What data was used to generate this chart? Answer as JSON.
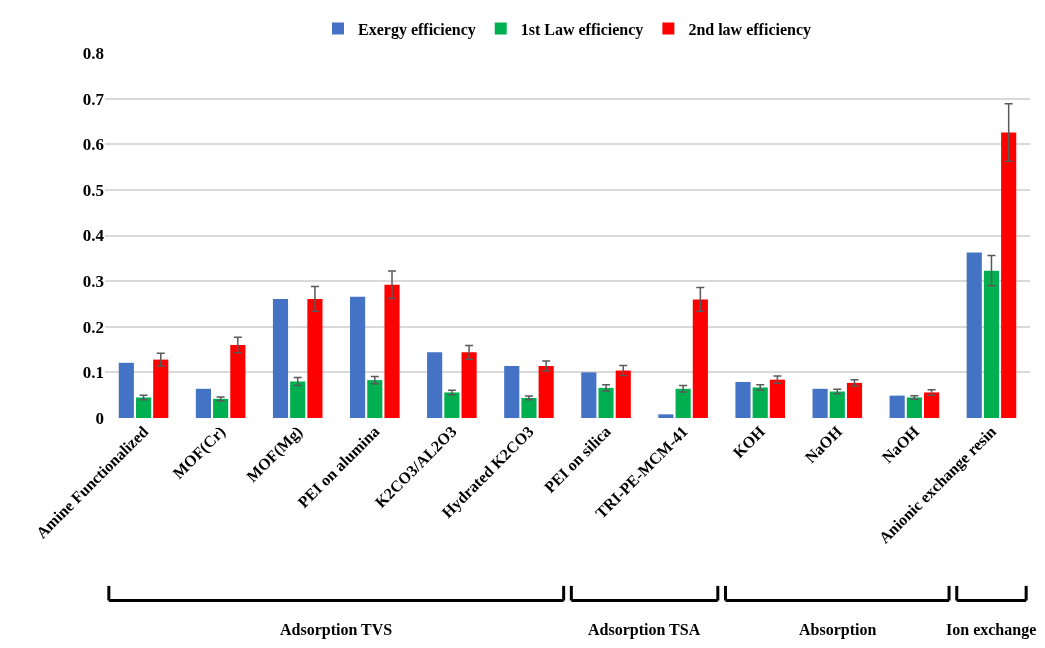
{
  "chart_data": {
    "type": "bar",
    "categories": [
      "Amine Functionalized",
      "MOF(Cr)",
      "MOF(Mg)",
      "PEI on alumina",
      "K2CO3/AL2O3",
      "Hydrated K2CO3",
      "PEI on silica",
      "TRI-PE-MCM-41",
      "KOH",
      "NaOH",
      "NaOH",
      "Anionic exchange resin"
    ],
    "series": [
      {
        "name": "Exergy efficiency",
        "color": "#4472c4",
        "values": [
          0.121,
          0.064,
          0.261,
          0.266,
          0.144,
          0.114,
          0.1,
          0.008,
          0.079,
          0.064,
          0.049,
          0.363
        ]
      },
      {
        "name": "1st Law efficiency",
        "color": "#00b050",
        "values": [
          0.045,
          0.042,
          0.08,
          0.083,
          0.056,
          0.044,
          0.066,
          0.064,
          0.067,
          0.058,
          0.045,
          0.323
        ],
        "errors": [
          0.005,
          0.004,
          0.009,
          0.008,
          0.005,
          0.004,
          0.007,
          0.007,
          0.006,
          0.005,
          0.004,
          0.033
        ]
      },
      {
        "name": "2nd law efficiency",
        "color": "#ff0000",
        "values": [
          0.128,
          0.16,
          0.261,
          0.292,
          0.144,
          0.114,
          0.104,
          0.26,
          0.084,
          0.077,
          0.056,
          0.626
        ],
        "errors": [
          0.014,
          0.017,
          0.027,
          0.03,
          0.015,
          0.011,
          0.011,
          0.026,
          0.008,
          0.007,
          0.006,
          0.063
        ]
      }
    ],
    "annotations": [
      "Adsorption TVS",
      "Adsorption TSA",
      "Absorption",
      "Ion exchange"
    ],
    "ylim": [
      0,
      0.8
    ],
    "yticks": [
      0,
      0.1,
      0.2,
      0.3,
      0.4,
      0.5,
      0.6,
      0.7,
      0.8
    ],
    "grid": "y",
    "legend": "top"
  }
}
